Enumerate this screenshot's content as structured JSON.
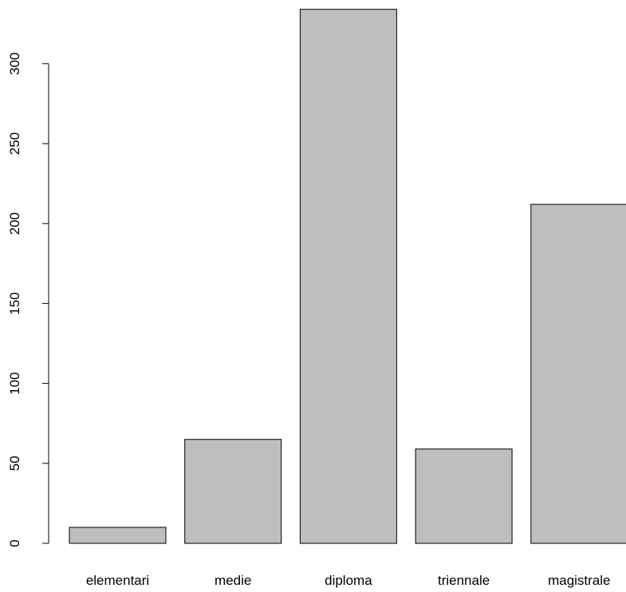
{
  "chart_data": {
    "type": "bar",
    "categories": [
      "elementari",
      "medie",
      "diploma",
      "triennale",
      "magistrale"
    ],
    "values": [
      10,
      65,
      334,
      59,
      212
    ],
    "yticks": [
      0,
      50,
      100,
      150,
      200,
      250,
      300
    ],
    "ytick_labels": [
      "0",
      "50",
      "100",
      "150",
      "200",
      "250",
      "300"
    ],
    "title": "",
    "xlabel": "",
    "ylabel": "",
    "grid": false,
    "legend": "none",
    "colors": {
      "bar_fill": "#bebebe",
      "bar_stroke": "#000000",
      "axis": "#000000",
      "text": "#000000"
    }
  }
}
